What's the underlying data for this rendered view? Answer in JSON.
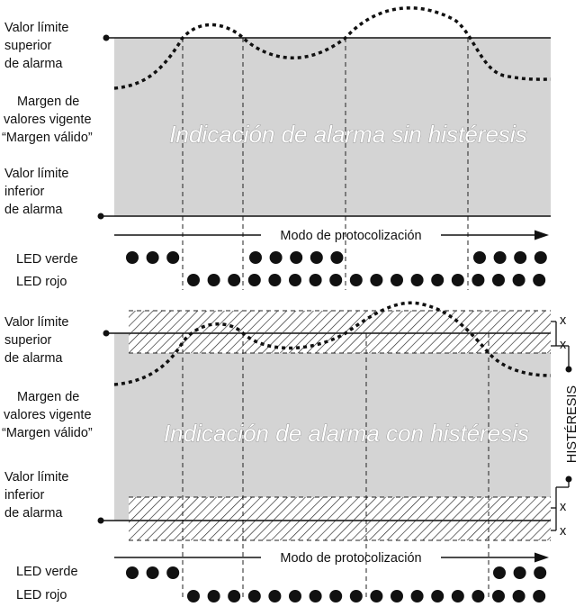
{
  "top_panel": {
    "labels": {
      "upper_limit": [
        "Valor límite",
        "superior",
        "de alarma"
      ],
      "valid_range": [
        "Margen de",
        "valores vigente",
        "“Margen válido”"
      ],
      "lower_limit": [
        "Valor límite",
        "inferior",
        "de alarma"
      ]
    },
    "banner": "Indicación de alarma sin histéresis",
    "mode_label": "Modo de protocolización",
    "led_green_label": "LED verde",
    "led_red_label": "LED rojo"
  },
  "bottom_panel": {
    "labels": {
      "upper_limit": [
        "Valor límite",
        "superior",
        "de alarma"
      ],
      "valid_range": [
        "Margen de",
        "valores vigente",
        "“Margen válido”"
      ],
      "lower_limit": [
        "Valor límite",
        "inferior",
        "de alarma"
      ]
    },
    "banner": "Indicación de alarma con histéresis",
    "mode_label": "Modo de protocolización",
    "led_green_label": "LED verde",
    "led_red_label": "LED rojo",
    "hysteresis_label": "HISTÉRESIS",
    "x_marks": [
      "x",
      "x",
      "x",
      "x"
    ]
  },
  "colors": {
    "range_fill": "#d4d4d4",
    "line": "#111111",
    "banner_text": "#ffffff"
  }
}
